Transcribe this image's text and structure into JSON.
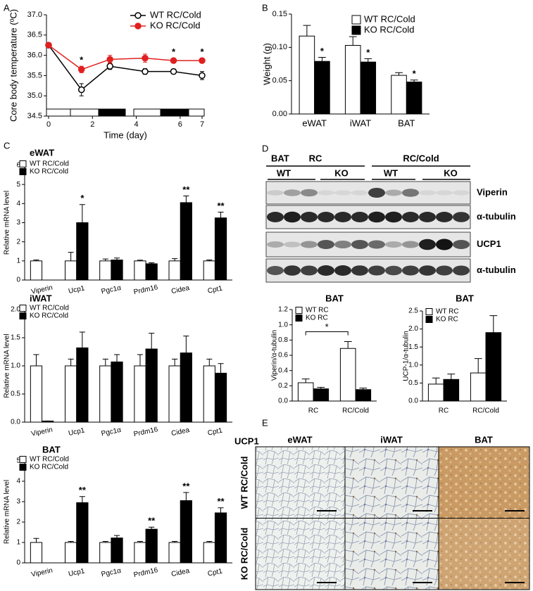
{
  "chart_data": [
    {
      "type": "line",
      "label": "A",
      "ylabel": "Core body temperature (ºC)",
      "xlabel": "Time (day)",
      "xlim": [
        0,
        7
      ],
      "xticks": [
        0,
        2,
        4,
        6,
        7
      ],
      "ylim": [
        34.5,
        37
      ],
      "yticks": [
        34.5,
        {
          "value": 35,
          "label": "35.0"
        },
        35.5,
        {
          "value": 36,
          "label": "36.0"
        },
        36.5,
        {
          "value": 37,
          "label": "37.0"
        }
      ],
      "x": [
        0,
        1.5,
        2.8,
        4.4,
        5.7,
        7
      ],
      "series": [
        {
          "name": "WT RC/Cold",
          "color": "#000000",
          "marker": "open",
          "values": [
            36.25,
            35.15,
            35.73,
            35.6,
            35.6,
            35.5
          ],
          "errors": [
            0.05,
            0.15,
            0.08,
            0.07,
            0.06,
            0.1
          ]
        },
        {
          "name": "KO RC/Cold",
          "color": "#e02020",
          "marker": "filled",
          "values": [
            36.25,
            35.65,
            35.9,
            35.93,
            35.87,
            35.87
          ],
          "errors": [
            0.05,
            0.08,
            0.1,
            0.1,
            0.06,
            0.06
          ]
        }
      ],
      "annotations": [
        {
          "text": "*",
          "series": 1,
          "index": 1
        },
        {
          "text": "*",
          "series": 1,
          "index": 4
        },
        {
          "text": "*",
          "series": 1,
          "index": 5
        }
      ],
      "legend": "upper right"
    },
    {
      "type": "bar",
      "label": "B",
      "ylabel": "Weight (g)",
      "categories": [
        "eWAT",
        "iWAT",
        "BAT"
      ],
      "ylim": [
        0,
        0.15
      ],
      "yticks": [
        {
          "value": 0,
          "label": "0.00"
        },
        {
          "value": 0.05,
          "label": "0.05"
        },
        {
          "value": 0.1,
          "label": "0.10"
        },
        {
          "value": 0.15,
          "label": "0.15"
        }
      ],
      "series": [
        {
          "name": "WT RC/Cold",
          "color": "#ffffff",
          "values": [
            0.117,
            0.103,
            0.058
          ],
          "errors": [
            0.016,
            0.013,
            0.004
          ]
        },
        {
          "name": "KO RC/Cold",
          "color": "#000000",
          "values": [
            0.079,
            0.078,
            0.048
          ],
          "errors": [
            0.006,
            0.005,
            0.003
          ]
        }
      ],
      "annotations": [
        {
          "text": "*",
          "series": 1,
          "index": 0
        },
        {
          "text": "*",
          "series": 1,
          "index": 1
        },
        {
          "text": "*",
          "series": 1,
          "index": 2
        }
      ],
      "legend": "upper right"
    },
    {
      "type": "bar",
      "label": "C",
      "title": "eWAT",
      "ylabel": "Relative mRNA level",
      "categories": [
        "Viperin",
        "Ucp1",
        "Pgc1α",
        "Prdm16",
        "Cidea",
        "Cpt1"
      ],
      "ylim": [
        0,
        6
      ],
      "yticks": [
        0,
        1,
        2,
        3,
        4,
        5,
        6
      ],
      "series": [
        {
          "name": "WT RC/Cold",
          "color": "#ffffff",
          "values": [
            1.0,
            1.0,
            1.0,
            1.0,
            1.0,
            1.0
          ],
          "errors": [
            0.05,
            0.45,
            0.1,
            0.04,
            0.12,
            0.05
          ]
        },
        {
          "name": "KO RC/Cold",
          "color": "#000000",
          "values": [
            0,
            3.0,
            1.05,
            0.85,
            4.05,
            3.25
          ],
          "errors": [
            0,
            0.95,
            0.1,
            0.05,
            0.35,
            0.3
          ]
        }
      ],
      "annotations": [
        {
          "text": "*",
          "series": 1,
          "index": 1
        },
        {
          "text": "**",
          "series": 1,
          "index": 4
        },
        {
          "text": "**",
          "series": 1,
          "index": 5
        }
      ],
      "legend": "upper left"
    },
    {
      "type": "bar",
      "title": "iWAT",
      "ylabel": "Relative mRNA level",
      "categories": [
        "Viperin",
        "Ucp1",
        "Pgc1α",
        "Prdm16",
        "Cidea",
        "Cpt1"
      ],
      "ylim": [
        0,
        2
      ],
      "yticks": [
        {
          "value": 0,
          "label": "0.0"
        },
        0.5,
        {
          "value": 1,
          "label": "1.0"
        },
        1.5,
        {
          "value": 2,
          "label": "2.0"
        }
      ],
      "series": [
        {
          "name": "WT RC/Cold",
          "color": "#ffffff",
          "values": [
            1.0,
            1.0,
            1.0,
            1.0,
            1.0,
            1.0
          ],
          "errors": [
            0.2,
            0.12,
            0.12,
            0.2,
            0.12,
            0.12
          ]
        },
        {
          "name": "KO RC/Cold",
          "color": "#000000",
          "values": [
            0.02,
            1.32,
            1.07,
            1.3,
            1.23,
            0.87
          ],
          "errors": [
            0,
            0.28,
            0.13,
            0.28,
            0.3,
            0.17
          ]
        }
      ],
      "legend": "upper left"
    },
    {
      "type": "bar",
      "title": "BAT",
      "ylabel": "Relative mRNA level",
      "categories": [
        "Viperin",
        "Ucp1",
        "Pgc1α",
        "Prdm16",
        "Cidea",
        "Cpt1"
      ],
      "ylim": [
        0,
        5
      ],
      "yticks": [
        0,
        1,
        2,
        3,
        4,
        5
      ],
      "series": [
        {
          "name": "WT RC/Cold",
          "color": "#ffffff",
          "values": [
            1.0,
            1.0,
            1.0,
            1.0,
            1.0,
            1.0
          ],
          "errors": [
            0.2,
            0.05,
            0.05,
            0.05,
            0.05,
            0.05
          ]
        },
        {
          "name": "KO RC/Cold",
          "color": "#000000",
          "values": [
            0,
            2.95,
            1.22,
            1.65,
            3.05,
            2.45
          ],
          "errors": [
            0,
            0.3,
            0.12,
            0.1,
            0.4,
            0.25
          ]
        }
      ],
      "annotations": [
        {
          "text": "**",
          "series": 1,
          "index": 1
        },
        {
          "text": "**",
          "series": 1,
          "index": 3
        },
        {
          "text": "**",
          "series": 1,
          "index": 4
        },
        {
          "text": "**",
          "series": 1,
          "index": 5
        }
      ],
      "legend": "upper left"
    },
    {
      "type": "bar",
      "title": "BAT",
      "ylabel": "Viperin/α-tubulin",
      "categories": [
        "RC",
        "RC/Cold"
      ],
      "ylim": [
        0,
        1.2
      ],
      "yticks": [
        {
          "value": 0,
          "label": "0.0"
        },
        0.2,
        0.4,
        0.6,
        0.8,
        {
          "value": 1,
          "label": "1.0"
        },
        1.2
      ],
      "series": [
        {
          "name": "WT RC",
          "color": "#ffffff",
          "values": [
            0.24,
            0.69
          ],
          "errors": [
            0.05,
            0.09
          ]
        },
        {
          "name": "KO RC",
          "color": "#000000",
          "values": [
            0.16,
            0.15
          ],
          "errors": [
            0.02,
            0.02
          ]
        }
      ],
      "brackets": [
        {
          "text": "*",
          "series": 0,
          "from": 0,
          "to": 1
        }
      ],
      "legend": "upper left"
    },
    {
      "type": "bar",
      "title": "BAT",
      "ylabel": "UCP-1/α-tubulin",
      "categories": [
        "RC",
        "RC/Cold"
      ],
      "ylim": [
        0,
        2.5
      ],
      "yticks": [
        {
          "value": 0,
          "label": "0.0"
        },
        0.5,
        {
          "value": 1,
          "label": "1.0"
        },
        1.5,
        {
          "value": 2,
          "label": "2.0"
        },
        2.5
      ],
      "series": [
        {
          "name": "WT RC",
          "color": "#ffffff",
          "values": [
            0.47,
            0.78
          ],
          "errors": [
            0.17,
            0.4
          ]
        },
        {
          "name": "KO RC",
          "color": "#000000",
          "values": [
            0.6,
            1.9
          ],
          "errors": [
            0.15,
            0.47
          ]
        }
      ],
      "legend": "upper left"
    }
  ],
  "blot": {
    "label": "D",
    "title": "BAT",
    "groups": [
      "RC",
      "RC/Cold"
    ],
    "genotypes": [
      "WT",
      "KO",
      "WT",
      "KO"
    ],
    "rows": [
      "Viperin",
      "α-tubulin",
      "UCP1",
      "α-tubulin"
    ]
  },
  "histology": {
    "label": "E",
    "stain": "UCP1",
    "columns": [
      "eWAT",
      "iWAT",
      "BAT"
    ],
    "rows": [
      "WT RC/Cold",
      "KO RC/Cold"
    ]
  }
}
